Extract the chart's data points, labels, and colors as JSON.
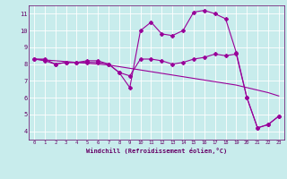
{
  "xlabel": "Windchill (Refroidissement éolien,°C)",
  "bg_color": "#c8ecec",
  "line_color": "#990099",
  "grid_color": "#ffffff",
  "axis_color": "#660066",
  "xlim": [
    -0.5,
    23.5
  ],
  "ylim": [
    3.5,
    11.5
  ],
  "yticks": [
    4,
    5,
    6,
    7,
    8,
    9,
    10,
    11
  ],
  "xticks": [
    0,
    1,
    2,
    3,
    4,
    5,
    6,
    7,
    8,
    9,
    10,
    11,
    12,
    13,
    14,
    15,
    16,
    17,
    18,
    19,
    20,
    21,
    22,
    23
  ],
  "line1_x": [
    0,
    1,
    2,
    3,
    4,
    5,
    6,
    7,
    8,
    9,
    10,
    11,
    12,
    13,
    14,
    15,
    16,
    17,
    18,
    19,
    20,
    21,
    22,
    23
  ],
  "line1_y": [
    8.3,
    8.25,
    8.2,
    8.15,
    8.1,
    8.05,
    8.0,
    7.95,
    7.85,
    7.75,
    7.65,
    7.55,
    7.45,
    7.35,
    7.25,
    7.15,
    7.05,
    6.95,
    6.85,
    6.75,
    6.6,
    6.45,
    6.3,
    6.1
  ],
  "line2_x": [
    0,
    1,
    2,
    3,
    4,
    5,
    6,
    7,
    8,
    9,
    10,
    11,
    12,
    13,
    14,
    15,
    16,
    17,
    18,
    19,
    20,
    21,
    22,
    23
  ],
  "line2_y": [
    8.3,
    8.3,
    8.0,
    8.1,
    8.1,
    8.2,
    8.2,
    8.0,
    7.5,
    6.6,
    10.0,
    10.5,
    9.8,
    9.7,
    10.0,
    11.1,
    11.2,
    11.0,
    10.7,
    8.7,
    6.0,
    4.2,
    4.4,
    4.9
  ],
  "line3_x": [
    0,
    1,
    2,
    3,
    4,
    5,
    6,
    7,
    8,
    9,
    10,
    11,
    12,
    13,
    14,
    15,
    16,
    17,
    18,
    19,
    20,
    21,
    22,
    23
  ],
  "line3_y": [
    8.3,
    8.2,
    8.0,
    8.1,
    8.1,
    8.1,
    8.1,
    8.0,
    7.5,
    7.3,
    8.3,
    8.3,
    8.2,
    8.0,
    8.1,
    8.3,
    8.4,
    8.6,
    8.5,
    8.6,
    6.0,
    4.2,
    4.4,
    4.9
  ],
  "marker": "D",
  "markersize": 2.0,
  "linewidth": 0.8
}
